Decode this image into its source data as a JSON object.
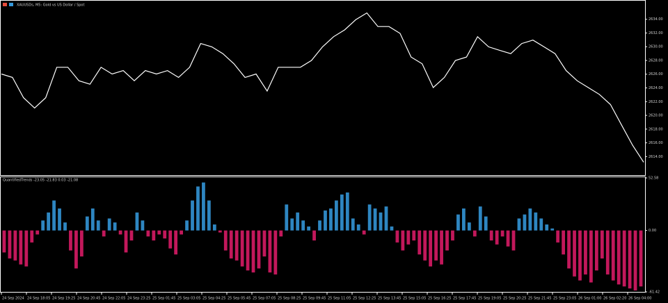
{
  "chart_data": [
    {
      "type": "line",
      "title": "XAUUSDs, M5: Gold vs US Dollar / Spot",
      "color": "#ffffff",
      "values": [
        2626.02,
        2625.53,
        2622.57,
        2621.08,
        2622.57,
        2627.01,
        2627.01,
        2625.04,
        2624.54,
        2627.01,
        2626.02,
        2626.52,
        2625.04,
        2626.52,
        2626.02,
        2626.52,
        2625.53,
        2627.01,
        2630.47,
        2629.98,
        2628.99,
        2627.51,
        2625.53,
        2626.02,
        2623.55,
        2627.01,
        2627.01,
        2627.01,
        2628.0,
        2629.98,
        2631.46,
        2632.45,
        2633.93,
        2634.92,
        2632.94,
        2632.94,
        2631.95,
        2628.49,
        2627.51,
        2624.05,
        2625.53,
        2628.0,
        2628.49,
        2631.46,
        2629.98,
        2629.48,
        2628.99,
        2630.47,
        2630.96,
        2629.98,
        2628.99,
        2626.52,
        2625.04,
        2624.05,
        2623.06,
        2621.58,
        2618.61,
        2615.65,
        2613.18
      ],
      "ylim": [
        2611.5,
        2636.4
      ],
      "yticks": [
        {
          "value": 2614,
          "label": "2614.00"
        },
        {
          "value": 2616,
          "label": "2616.00"
        },
        {
          "value": 2618,
          "label": "2618.00"
        },
        {
          "value": 2620,
          "label": "2620.00"
        },
        {
          "value": 2622,
          "label": "2622.00"
        },
        {
          "value": 2624,
          "label": "2624.00"
        },
        {
          "value": 2626,
          "label": "2626.00"
        },
        {
          "value": 2628,
          "label": "2628.00"
        },
        {
          "value": 2630,
          "label": "2630.00"
        },
        {
          "value": 2632,
          "label": "2632.00"
        },
        {
          "value": 2634,
          "label": "2634.00"
        }
      ]
    },
    {
      "type": "bar",
      "title": "QuantifiedTrends -23.05 -21.83 0.03 -21.08",
      "positive_color": "#2e86c1",
      "negative_color": "#c2185b",
      "values": [
        -22,
        -28,
        -30,
        -34,
        -36,
        -12,
        -4,
        10,
        18,
        30,
        22,
        8,
        -20,
        -38,
        -26,
        14,
        22,
        10,
        -6,
        12,
        8,
        -4,
        -22,
        -10,
        18,
        10,
        -6,
        -10,
        -4,
        -8,
        -18,
        -24,
        -4,
        10,
        30,
        44,
        48,
        30,
        6,
        -2,
        -20,
        -28,
        -30,
        -36,
        -40,
        -42,
        -38,
        -26,
        -42,
        -44,
        -6,
        26,
        12,
        18,
        10,
        4,
        -10,
        10,
        20,
        22,
        30,
        36,
        38,
        12,
        6,
        -4,
        26,
        22,
        18,
        24,
        4,
        -12,
        -20,
        -14,
        -10,
        -24,
        -30,
        -36,
        -30,
        -34,
        -20,
        -10,
        16,
        22,
        8,
        -6,
        24,
        14,
        -10,
        -14,
        -6,
        -16,
        -20,
        12,
        16,
        22,
        18,
        12,
        6,
        2,
        -12,
        -24,
        -38,
        -46,
        -50,
        -44,
        -52,
        -40,
        -28,
        -44,
        -50,
        -54,
        -56,
        -58,
        -60,
        -56
      ],
      "ylim": [
        -61.42,
        52.58
      ],
      "yticks": [
        -61.42,
        {
          "value": 0,
          "label": "0.00"
        },
        52.58
      ]
    }
  ],
  "time_axis": {
    "labels": [
      "24 Sep 2024",
      "24 Sep 18:05",
      "24 Sep 19:25",
      "24 Sep 20:45",
      "24 Sep 22:05",
      "24 Sep 23:25",
      "25 Sep 01:45",
      "25 Sep 03:05",
      "25 Sep 04:25",
      "25 Sep 05:45",
      "25 Sep 07:05",
      "25 Sep 08:25",
      "25 Sep 09:45",
      "25 Sep 11:05",
      "25 Sep 12:25",
      "25 Sep 13:45",
      "25 Sep 15:05",
      "25 Sep 16:25",
      "25 Sep 17:45",
      "25 Sep 19:05",
      "25 Sep 20:25",
      "25 Sep 21:45",
      "25 Sep 23:05",
      "26 Sep 01:00",
      "26 Sep 02:20",
      "26 Sep 04:00"
    ]
  }
}
